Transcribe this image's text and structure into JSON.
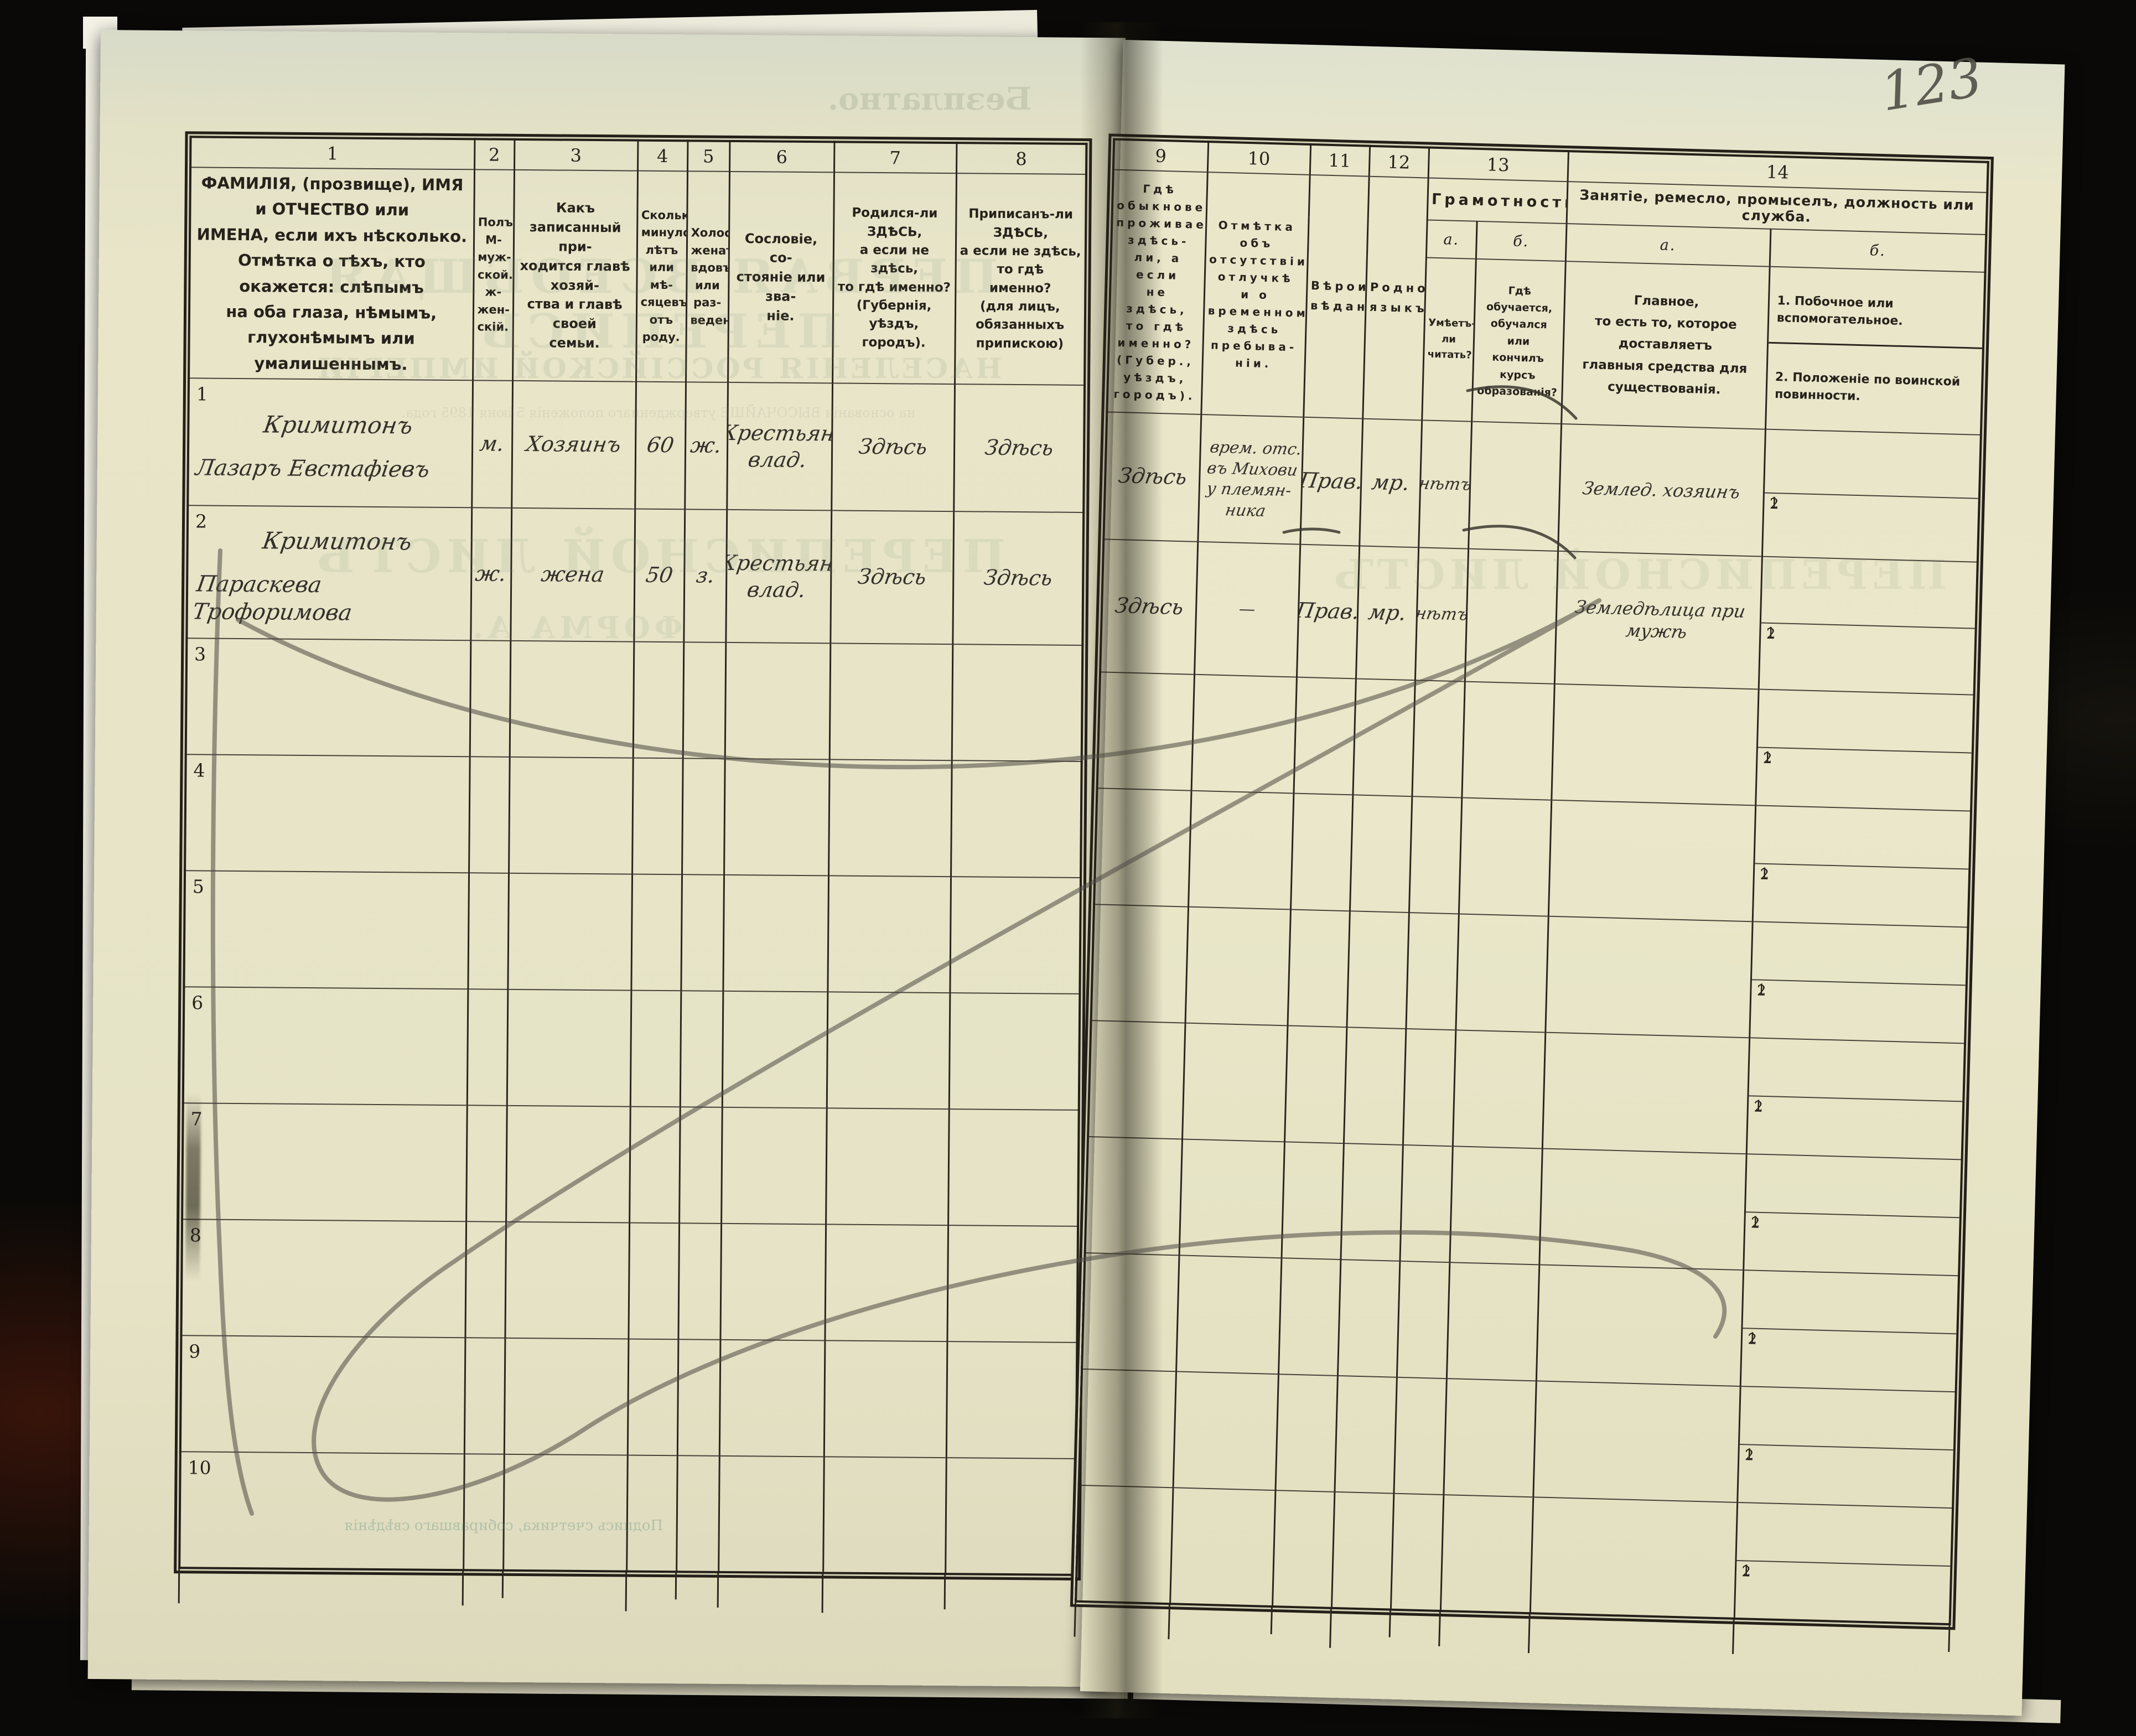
{
  "page_number": "123",
  "left_table": {
    "columns": [
      {
        "num": "1",
        "label": "ФАМИЛІЯ, (прозвище), ИМЯ и ОТЧЕСТВО или\nИМЕНА, если ихъ нѣсколько.\nОтмѣтка о тѣхъ, кто окажется: слѣпымъ\nна оба глаза, нѣмымъ, глухонѣмымъ или\nумалишеннымъ."
      },
      {
        "num": "2",
        "label": "Полъ.\nМ-муж-\nской.\nж-жен-\nскій."
      },
      {
        "num": "3",
        "label": "Какъ записанный при-\nходится главѣ хозяй-\nства и главѣ своей\nсемьи."
      },
      {
        "num": "4",
        "label": "Сколько\nминуло\nлѣтъ\nили мѣ-\nсяцевъ\nотъ роду."
      },
      {
        "num": "5",
        "label": "Холостъ,\nженатъ,\nвдовъ\nили раз-\nведенъ."
      },
      {
        "num": "6",
        "label": "Сословіе, со-\nстояніе или зва-\nніе."
      },
      {
        "num": "7",
        "label": "Родился-ли ЗДѢСЬ,\nа если не здѣсь,\nто гдѣ именно?\n(Губернія, уѣздъ, городъ)."
      },
      {
        "num": "8",
        "label": "Приписанъ-ли ЗДѢСЬ,\nа если не здѣсь, то гдѣ\nименно?\n(для лицъ, обязанныхъ\nприпискою)"
      }
    ]
  },
  "right_table": {
    "columns_simple": [
      {
        "num": "9",
        "label": "Гдѣ обыкновенно\nпроживаетъ:\nздѣсь-ли, а если\nне здѣсь, то гдѣ\nименно?\n(Губер., уѣздъ, городъ)."
      },
      {
        "num": "10",
        "label": "Отмѣтка объ\nотсутствіи, отлучкѣ\nи о временномъ\nздѣсь пребыва-\nніи."
      },
      {
        "num": "11",
        "label": "Вѣроиспо-\nвѣданіе."
      },
      {
        "num": "12",
        "label": "Родной\nязыкъ."
      }
    ],
    "col13": {
      "num": "13",
      "title": "Грамотность.",
      "sub_a": "а.",
      "sub_b": "б.",
      "desc_a": "Умѣетъ-\nли\nчитать?",
      "desc_b": "Гдѣ обучается,\nобучался или\nкончилъ курсъ\nобразованія?"
    },
    "col14": {
      "num": "14",
      "title": "Занятіе, ремесло, промыселъ, должность или служба.",
      "sub_a": "а.",
      "sub_b": "б.",
      "desc_a": "Главное,\nто есть то, которое доставляетъ\nглавныя средства для существованія.",
      "desc_b_items": [
        "1. Побочное или вспомогательное.",
        "2. Положеніе по воинской повинности."
      ]
    },
    "subrow_labels": [
      "1",
      "2"
    ]
  },
  "rows": [
    {
      "num": "1",
      "c1a": "Кримитонъ",
      "c1b": "Лазаръ Евстафіевъ",
      "c2": "м.",
      "c3": "Хозяинъ",
      "c4": "60",
      "c5": "ж.",
      "c6": "Крестьян.\nвлад.",
      "c7": "Здѣсь",
      "c8": "Здѣсь",
      "c9": "Здѣсь",
      "c10": "врем. отс.\nвъ Михови\nу племян-\nника",
      "c11": "Прав.",
      "c12": "мр.",
      "c13a": "нѣтъ",
      "c13b": "",
      "c14a": "Землед. хозяинъ",
      "c14b1": "",
      "c14b2": ""
    },
    {
      "num": "2",
      "c1a": "Кримитонъ",
      "c1b": "Параскева Трофоримова",
      "c2": "ж.",
      "c3": "жена",
      "c4": "50",
      "c5": "з.",
      "c6": "Крестьян.\nвлад.",
      "c7": "Здѣсь",
      "c8": "Здѣсь",
      "c9": "Здѣсь",
      "c10": "—",
      "c11": "Прав.",
      "c12": "мр.",
      "c13a": "нѣтъ",
      "c13b": "",
      "c14a": "Земледѣлица при мужѣ",
      "c14b1": "",
      "c14b2": ""
    },
    {
      "num": "3",
      "c1a": "",
      "c1b": "",
      "c2": "",
      "c3": "",
      "c4": "",
      "c5": "",
      "c6": "",
      "c7": "",
      "c8": "",
      "c9": "",
      "c10": "",
      "c11": "",
      "c12": "",
      "c13a": "",
      "c13b": "",
      "c14a": "",
      "c14b1": "",
      "c14b2": ""
    },
    {
      "num": "4",
      "c1a": "",
      "c1b": "",
      "c2": "",
      "c3": "",
      "c4": "",
      "c5": "",
      "c6": "",
      "c7": "",
      "c8": "",
      "c9": "",
      "c10": "",
      "c11": "",
      "c12": "",
      "c13a": "",
      "c13b": "",
      "c14a": "",
      "c14b1": "",
      "c14b2": ""
    },
    {
      "num": "5",
      "c1a": "",
      "c1b": "",
      "c2": "",
      "c3": "",
      "c4": "",
      "c5": "",
      "c6": "",
      "c7": "",
      "c8": "",
      "c9": "",
      "c10": "",
      "c11": "",
      "c12": "",
      "c13a": "",
      "c13b": "",
      "c14a": "",
      "c14b1": "",
      "c14b2": ""
    },
    {
      "num": "6",
      "c1a": "",
      "c1b": "",
      "c2": "",
      "c3": "",
      "c4": "",
      "c5": "",
      "c6": "",
      "c7": "",
      "c8": "",
      "c9": "",
      "c10": "",
      "c11": "",
      "c12": "",
      "c13a": "",
      "c13b": "",
      "c14a": "",
      "c14b1": "",
      "c14b2": ""
    },
    {
      "num": "7",
      "c1a": "",
      "c1b": "",
      "c2": "",
      "c3": "",
      "c4": "",
      "c5": "",
      "c6": "",
      "c7": "",
      "c8": "",
      "c9": "",
      "c10": "",
      "c11": "",
      "c12": "",
      "c13a": "",
      "c13b": "",
      "c14a": "",
      "c14b1": "",
      "c14b2": ""
    },
    {
      "num": "8",
      "c1a": "",
      "c1b": "",
      "c2": "",
      "c3": "",
      "c4": "",
      "c5": "",
      "c6": "",
      "c7": "",
      "c8": "",
      "c9": "",
      "c10": "",
      "c11": "",
      "c12": "",
      "c13a": "",
      "c13b": "",
      "c14a": "",
      "c14b1": "",
      "c14b2": ""
    },
    {
      "num": "9",
      "c1a": "",
      "c1b": "",
      "c2": "",
      "c3": "",
      "c4": "",
      "c5": "",
      "c6": "",
      "c7": "",
      "c8": "",
      "c9": "",
      "c10": "",
      "c11": "",
      "c12": "",
      "c13a": "",
      "c13b": "",
      "c14a": "",
      "c14b1": "",
      "c14b2": ""
    },
    {
      "num": "10",
      "c1a": "",
      "c1b": "",
      "c2": "",
      "c3": "",
      "c4": "",
      "c5": "",
      "c6": "",
      "c7": "",
      "c8": "",
      "c9": "",
      "c10": "",
      "c11": "",
      "c12": "",
      "c13a": "",
      "c13b": "",
      "c14a": "",
      "c14b1": "",
      "c14b2": ""
    }
  ],
  "ghosts": {
    "free_of_charge": "Безплатно.",
    "title1": "ПЕРВАЯ ВСЕОБЩАЯ ПЕРЕПИСЬ",
    "title2": "НАСЕЛЕНІЯ РОССІЙСКОЙ ИМПЕРІИ",
    "title3": "на основаніи ВЫСОЧАЙШЕ утвержденнаго положенія 5 іюня 1895 года.",
    "sheet": "ПЕРЕПИСНОЙ ЛИСТЪ",
    "form": "ФОРМА А.",
    "sheet_right": "ПЕРЕПИСНОЙ ЛИСТЪ",
    "footer": "Подпись счетчика, собиравшаго свѣдѣнія"
  }
}
